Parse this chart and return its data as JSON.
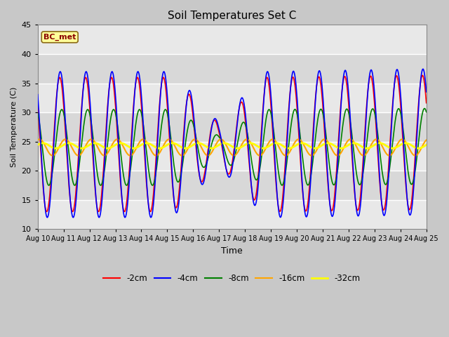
{
  "title": "Soil Temperatures Set C",
  "xlabel": "Time",
  "ylabel": "Soil Temperature (C)",
  "ylim": [
    10,
    45
  ],
  "annotation_text": "BC_met",
  "annotation_color": "#8B0000",
  "annotation_bg": "#ffff99",
  "annotation_border": "#8B6914",
  "legend_labels": [
    "-2cm",
    "-4cm",
    "-8cm",
    "-16cm",
    "-32cm"
  ],
  "line_colors": [
    "red",
    "blue",
    "green",
    "orange",
    "yellow"
  ],
  "tick_labels": [
    "Aug 10",
    "Aug 11",
    "Aug 12",
    "Aug 13",
    "Aug 14",
    "Aug 15",
    "Aug 16",
    "Aug 17",
    "Aug 18",
    "Aug 19",
    "Aug 20",
    "Aug 21",
    "Aug 22",
    "Aug 23",
    "Aug 24",
    "Aug 25"
  ],
  "yticks": [
    10,
    15,
    20,
    25,
    30,
    35,
    40,
    45
  ],
  "fig_facecolor": "#c8c8c8",
  "ax_facecolor": "#dcdcdc"
}
